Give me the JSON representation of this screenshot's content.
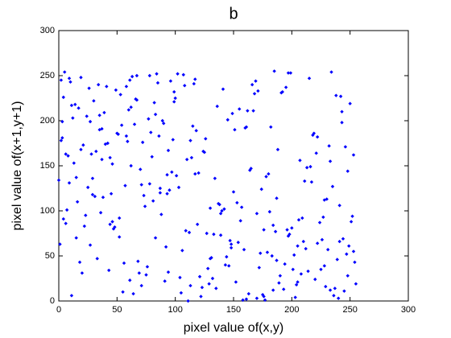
{
  "chart_data": {
    "type": "scatter",
    "title": "b",
    "x_label": "pixel value of(x,y)",
    "y_label": "pixel value of(x+1,y+1)",
    "color": "#0000ff",
    "xlim": [
      0,
      300
    ],
    "ylim": [
      0,
      300
    ],
    "xticks": [
      0,
      50,
      100,
      150,
      200,
      250,
      300
    ],
    "yticks": [
      0,
      50,
      100,
      150,
      200,
      250,
      300
    ],
    "x": [
      12,
      187,
      94,
      233,
      41,
      156,
      78,
      205,
      3,
      121,
      248,
      67,
      139,
      29,
      176,
      222,
      88,
      53,
      194,
      110,
      241,
      17,
      163,
      72,
      130,
      9,
      201,
      46,
      184,
      99,
      255,
      35,
      148,
      217,
      61,
      112,
      6,
      190,
      83,
      228,
      144,
      26,
      170,
      58,
      237,
      103,
      15,
      199,
      76,
      125,
      251,
      39,
      161,
      93,
      212,
      4,
      138,
      69,
      182,
      47,
      116,
      229,
      21,
      154,
      87,
      243,
      33,
      171,
      105,
      62,
      196,
      11,
      134,
      220,
      51,
      179,
      96,
      7,
      246,
      128,
      57,
      209,
      84,
      18,
      167,
      236,
      44,
      119,
      191,
      73,
      2,
      152,
      226,
      65,
      101,
      183,
      30,
      245,
      140,
      79,
      214,
      8,
      127,
      63,
      174,
      240,
      24,
      159,
      97,
      206,
      49,
      113,
      188,
      1,
      230,
      85,
      146,
      37,
      200,
      71,
      252,
      132,
      14,
      165,
      92,
      219,
      55,
      108,
      181,
      28,
      239,
      77,
      150,
      5,
      197,
      123,
      42,
      224,
      66,
      172,
      19,
      137,
      253,
      89,
      158,
      32,
      211,
      104,
      60,
      186,
      10,
      143,
      233,
      81,
      118,
      27,
      203,
      168,
      45,
      98,
      247,
      136,
      22,
      178,
      75,
      215,
      52,
      115,
      193,
      13,
      157,
      242,
      68,
      126,
      36,
      185,
      91,
      0,
      222,
      149,
      59,
      208,
      107,
      31,
      175,
      250,
      80,
      131,
      16,
      195,
      43,
      160,
      227,
      70,
      111,
      238,
      25,
      147,
      86,
      204,
      6,
      166,
      120,
      54,
      231,
      95,
      189,
      40,
      141,
      244,
      74,
      102,
      20,
      216,
      162,
      48,
      177,
      124,
      254,
      90,
      34,
      198,
      153,
      64,
      221,
      117,
      4,
      173,
      82,
      235,
      135,
      50,
      192,
      109,
      15,
      249,
      145,
      61,
      207,
      38,
      129,
      232,
      100,
      23,
      180,
      56,
      155,
      210,
      78,
      142,
      3,
      225,
      114,
      46,
      169,
      248,
      87,
      133,
      27,
      202,
      67,
      164,
      11,
      218,
      94,
      139,
      253,
      58,
      187,
      122,
      35,
      176,
      9,
      234,
      106,
      151,
      71,
      213,
      44,
      99,
      184,
      19,
      241,
      130,
      62,
      197,
      83,
      29,
      161,
      228,
      113,
      52,
      205,
      2,
      148,
      93,
      243,
      37,
      170,
      117
    ],
    "values": [
      203,
      45,
      167,
      12,
      238,
      89,
      130,
      61,
      199,
      27,
      144,
      250,
      73,
      118,
      5,
      182,
      96,
      229,
      41,
      157,
      66,
      214,
      8,
      176,
      103,
      247,
      35,
      152,
      84,
      221,
      19,
      190,
      59,
      132,
      245,
      76,
      163,
      28,
      207,
      112,
      49,
      236,
      97,
      183,
      14,
      126,
      70,
      253,
      38,
      165,
      88,
      209,
      2,
      140,
      58,
      226,
      107,
      31,
      193,
      80,
      241,
      16,
      173,
      65,
      120,
      198,
      47,
      233,
      9,
      150,
      79,
      217,
      136,
      24,
      185,
      54,
      244,
      101,
      171,
      36,
      128,
      92,
      252,
      43,
      211,
      6,
      159,
      85,
      231,
      117,
      178,
      21,
      68,
      196,
      139,
      50,
      222,
      11,
      100,
      187,
      33,
      161,
      75,
      249,
      124,
      3,
      205,
      57,
      143,
      90,
      234,
      17,
      168,
      63,
      113,
      242,
      39,
      191,
      81,
      129,
      94,
      25,
      218,
      147,
      60,
      186,
      10,
      239,
      99,
      163,
      46,
      202,
      121,
      254,
      72,
      15,
      175,
      87,
      224,
      37,
      248,
      108,
      55,
      200,
      1,
      166,
      133,
      26,
      212,
      77,
      243,
      40,
      155,
      111,
      189,
      62,
      4,
      230,
      119,
      179,
      52,
      216,
      83,
      138,
      29,
      247,
      71,
      194,
      13,
      153,
      104,
      227,
      44,
      180,
      98,
      255,
      22,
      134,
      64,
      208,
      177,
      30,
      251,
      116,
      7,
      219,
      160,
      48,
      110,
      237,
      34,
      192,
      93,
      146,
      0,
      228,
      126,
      67,
      183,
      18,
      86,
      240,
      142,
      195,
      57,
      123,
      20,
      174,
      235,
      69,
      105,
      252,
      31,
      149,
      211,
      82,
      1,
      166,
      43,
      197,
      240,
      74,
      109,
      8,
      164,
      246,
      91,
      53,
      220,
      127,
      14,
      186,
      232,
      78,
      137,
      61,
      201,
      23,
      156,
      115,
      19,
      172,
      225,
      95,
      141,
      42,
      213,
      66,
      250,
      102,
      181,
      35,
      159,
      88,
      244,
      28,
      125,
      74,
      199,
      51,
      223,
      145,
      6,
      184,
      32,
      97,
      162,
      238,
      114,
      5,
      206,
      79,
      131,
      254,
      56,
      190,
      17,
      148,
      85,
      232,
      12,
      168,
      106,
      47,
      215,
      253,
      70,
      136,
      193,
      39,
      178,
      92,
      21,
      245,
      63,
      119,
      210,
      157,
      3,
      141
    ]
  }
}
